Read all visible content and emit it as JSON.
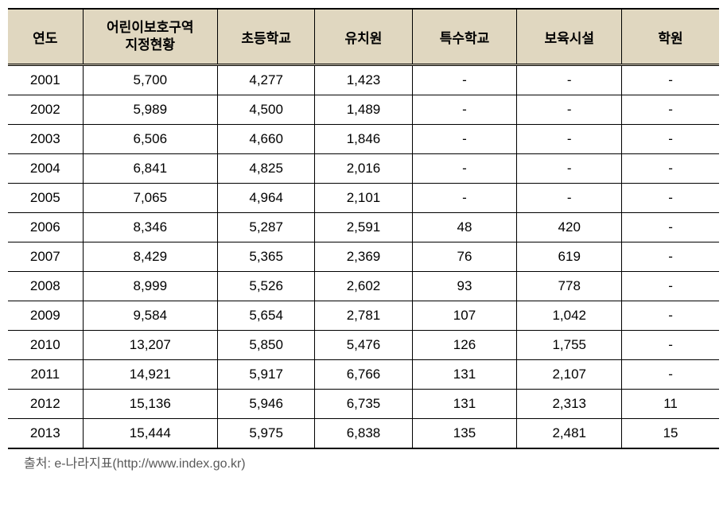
{
  "columns": [
    "연도",
    "어린이보호구역\n지정현황",
    "초등학교",
    "유치원",
    "특수학교",
    "보육시설",
    "학원"
  ],
  "column_widths": [
    "10%",
    "18%",
    "13%",
    "13%",
    "14%",
    "14%",
    "13%"
  ],
  "header_bg": "#e0d7c0",
  "border_color": "#000000",
  "font_size": 17,
  "header_font_size": 17,
  "rows": [
    [
      "2001",
      "5,700",
      "4,277",
      "1,423",
      "-",
      "-",
      "-"
    ],
    [
      "2002",
      "5,989",
      "4,500",
      "1,489",
      "-",
      "-",
      "-"
    ],
    [
      "2003",
      "6,506",
      "4,660",
      "1,846",
      "-",
      "-",
      "-"
    ],
    [
      "2004",
      "6,841",
      "4,825",
      "2,016",
      "-",
      "-",
      "-"
    ],
    [
      "2005",
      "7,065",
      "4,964",
      "2,101",
      "-",
      "-",
      "-"
    ],
    [
      "2006",
      "8,346",
      "5,287",
      "2,591",
      "48",
      "420",
      "-"
    ],
    [
      "2007",
      "8,429",
      "5,365",
      "2,369",
      "76",
      "619",
      "-"
    ],
    [
      "2008",
      "8,999",
      "5,526",
      "2,602",
      "93",
      "778",
      "-"
    ],
    [
      "2009",
      "9,584",
      "5,654",
      "2,781",
      "107",
      "1,042",
      "-"
    ],
    [
      "2010",
      "13,207",
      "5,850",
      "5,476",
      "126",
      "1,755",
      "-"
    ],
    [
      "2011",
      "14,921",
      "5,917",
      "6,766",
      "131",
      "2,107",
      "-"
    ],
    [
      "2012",
      "15,136",
      "5,946",
      "6,735",
      "131",
      "2,313",
      "11"
    ],
    [
      "2013",
      "15,444",
      "5,975",
      "6,838",
      "135",
      "2,481",
      "15"
    ]
  ],
  "source": "출처: e-나라지표(http://www.index.go.kr)",
  "source_color": "#595959"
}
